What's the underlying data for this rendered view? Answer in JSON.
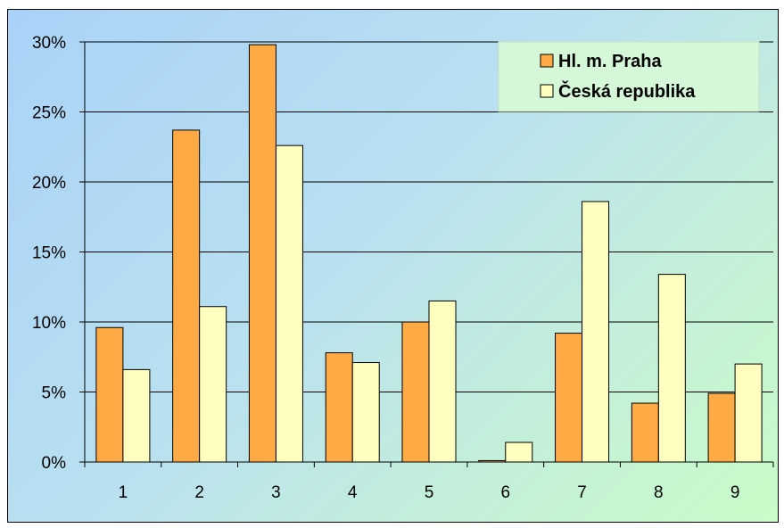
{
  "chart_data": {
    "type": "bar",
    "title": "",
    "xlabel": "",
    "ylabel": "",
    "categories": [
      "1",
      "2",
      "3",
      "4",
      "5",
      "6",
      "7",
      "8",
      "9"
    ],
    "series": [
      {
        "name": "Hl. m. Praha",
        "color": "#FFAA44",
        "values": [
          9.6,
          23.7,
          29.8,
          7.8,
          10.0,
          0.1,
          9.2,
          4.2,
          4.9
        ]
      },
      {
        "name": "Česká republika",
        "color": "#FFFFC0",
        "values": [
          6.6,
          11.1,
          22.6,
          7.1,
          11.5,
          1.4,
          18.6,
          13.4,
          7.0
        ]
      }
    ],
    "ylim": [
      0,
      30
    ],
    "yticks": [
      "0%",
      "5%",
      "10%",
      "15%",
      "20%",
      "25%",
      "30%"
    ],
    "grid": true,
    "legend_position": "top-right"
  }
}
